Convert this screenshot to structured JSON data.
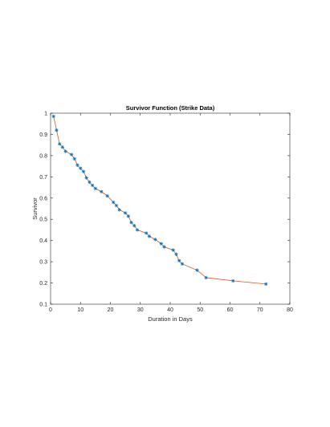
{
  "chart_data": {
    "type": "line",
    "title": "Survivor Function (Strike Data)",
    "xlabel": "Duration in Days",
    "ylabel": "Survivor",
    "xlim": [
      0,
      80
    ],
    "ylim": [
      0.1,
      1
    ],
    "xticks": [
      0,
      10,
      20,
      30,
      40,
      50,
      60,
      70,
      80
    ],
    "yticks": [
      0.1,
      0.2,
      0.3,
      0.4,
      0.5,
      0.6,
      0.7,
      0.8,
      0.9,
      1
    ],
    "xtick_labels": [
      "0",
      "10",
      "20",
      "30",
      "40",
      "50",
      "60",
      "70",
      "80"
    ],
    "ytick_labels": [
      "0.1",
      "0.2",
      "0.3",
      "0.4",
      "0.5",
      "0.6",
      "0.7",
      "0.8",
      "0.9",
      "1"
    ],
    "grid": false,
    "legend": "none",
    "series": [
      {
        "style": "line",
        "color": "#d95319",
        "x": [
          1,
          2,
          3,
          4,
          5,
          7,
          8,
          9,
          10,
          11,
          12,
          13,
          14,
          15,
          17,
          19,
          21,
          22,
          23,
          25,
          26,
          27,
          28,
          29,
          32,
          33,
          35,
          37,
          38,
          41,
          42,
          43,
          44,
          49,
          52,
          61,
          72
        ],
        "y": [
          0.985,
          0.92,
          0.855,
          0.84,
          0.82,
          0.805,
          0.785,
          0.755,
          0.74,
          0.725,
          0.695,
          0.675,
          0.66,
          0.645,
          0.63,
          0.61,
          0.58,
          0.565,
          0.545,
          0.53,
          0.515,
          0.485,
          0.47,
          0.45,
          0.435,
          0.42,
          0.405,
          0.385,
          0.37,
          0.355,
          0.335,
          0.305,
          0.29,
          0.26,
          0.225,
          0.21,
          0.195
        ]
      },
      {
        "style": "markers",
        "marker": "asterisk",
        "color": "#0072bd",
        "x": [
          1,
          2,
          3,
          4,
          5,
          7,
          8,
          9,
          10,
          11,
          12,
          13,
          14,
          15,
          17,
          19,
          21,
          22,
          23,
          25,
          26,
          27,
          28,
          29,
          32,
          33,
          35,
          37,
          38,
          41,
          42,
          43,
          44,
          49,
          52,
          61,
          72
        ],
        "y": [
          0.985,
          0.92,
          0.855,
          0.84,
          0.82,
          0.805,
          0.785,
          0.755,
          0.74,
          0.725,
          0.695,
          0.675,
          0.66,
          0.645,
          0.63,
          0.61,
          0.58,
          0.565,
          0.545,
          0.53,
          0.515,
          0.485,
          0.47,
          0.45,
          0.435,
          0.42,
          0.405,
          0.385,
          0.37,
          0.355,
          0.335,
          0.305,
          0.29,
          0.26,
          0.225,
          0.21,
          0.195
        ]
      }
    ]
  }
}
